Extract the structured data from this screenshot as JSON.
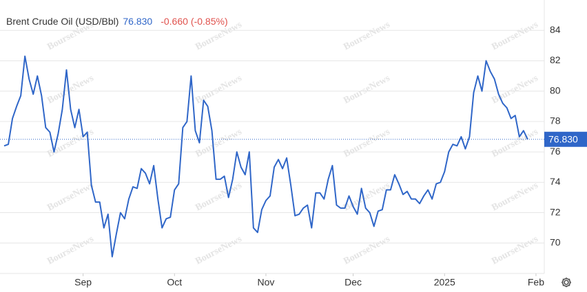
{
  "chart_data": {
    "type": "line",
    "title": "Brent Crude Oil (USD/Bbl)",
    "last": {
      "value": 76.83,
      "label": "76.830"
    },
    "change": {
      "value": -0.66,
      "label": "-0.660"
    },
    "change_pct": {
      "value": -0.85,
      "label": "(-0.85%)"
    },
    "watermark": "BourseNews",
    "series": [
      {
        "name": "Brent Crude Oil (USD/Bbl)",
        "color": "#2f66c8",
        "values": [
          76.4,
          76.5,
          78.2,
          79.0,
          79.7,
          82.3,
          80.8,
          79.8,
          81.0,
          79.7,
          77.6,
          77.3,
          76.0,
          77.2,
          78.8,
          81.4,
          78.8,
          77.6,
          78.8,
          77.0,
          77.3,
          73.8,
          72.7,
          72.7,
          71.0,
          71.9,
          69.1,
          70.6,
          72.0,
          71.6,
          72.9,
          73.7,
          73.6,
          74.9,
          74.6,
          73.9,
          75.1,
          72.9,
          71.0,
          71.6,
          71.7,
          73.5,
          73.9,
          77.6,
          78.0,
          81.0,
          77.4,
          76.6,
          79.4,
          79.0,
          77.4,
          74.2,
          74.2,
          74.4,
          73.0,
          74.2,
          76.0,
          75.0,
          74.5,
          76.0,
          71.0,
          70.7,
          72.2,
          72.8,
          73.1,
          75.0,
          75.5,
          74.9,
          75.6,
          73.8,
          71.8,
          71.9,
          72.3,
          72.5,
          71.0,
          73.3,
          73.3,
          72.9,
          74.2,
          75.1,
          72.5,
          72.3,
          72.3,
          73.1,
          72.4,
          71.9,
          73.6,
          72.3,
          72.0,
          71.1,
          72.1,
          72.2,
          73.5,
          73.5,
          74.5,
          73.9,
          73.2,
          73.4,
          72.9,
          72.9,
          72.6,
          73.1,
          73.5,
          72.9,
          73.9,
          74.0,
          74.7,
          76.0,
          76.5,
          76.4,
          77.0,
          76.2,
          77.0,
          79.9,
          81.0,
          80.0,
          82.0,
          81.3,
          80.8,
          79.8,
          79.2,
          78.9,
          78.2,
          78.4,
          77.0,
          77.4,
          76.83
        ]
      }
    ],
    "xlim": [
      -1,
      130
    ],
    "xticks": [
      {
        "value": 19,
        "label": "Sep"
      },
      {
        "value": 41,
        "label": "Oct"
      },
      {
        "value": 63,
        "label": "Nov"
      },
      {
        "value": 84,
        "label": "Dec"
      },
      {
        "value": 106,
        "label": "2025"
      },
      {
        "value": 128,
        "label": "Feb"
      }
    ],
    "ylim": [
      68,
      86
    ],
    "yticks": [
      70,
      72,
      74,
      76,
      78,
      80,
      82,
      84
    ],
    "grid": true
  }
}
